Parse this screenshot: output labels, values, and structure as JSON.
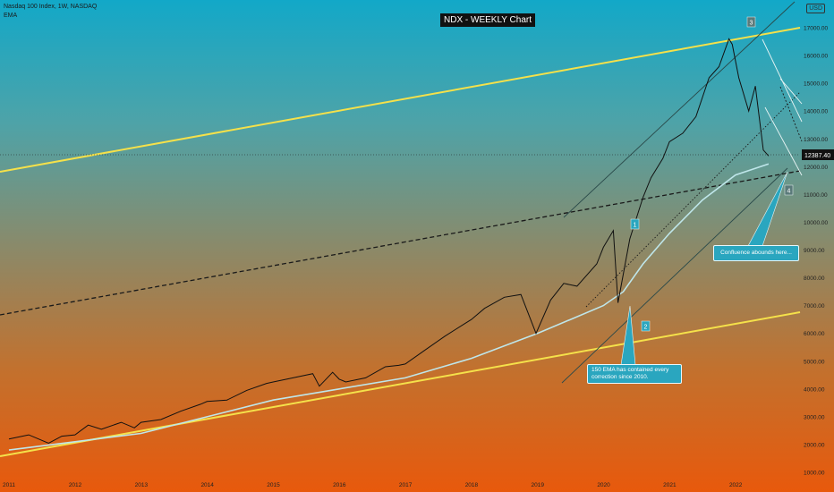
{
  "header": {
    "symbol_line": "Nasdaq 100 Index, 1W, NASDAQ",
    "indicator": "EMA",
    "currency": "USD"
  },
  "colors": {
    "price": "#111111",
    "ema": "#bfe6ea",
    "channel": "#f5e14a",
    "midline": "#1a1a1a",
    "callout": "#2aa6bf",
    "background_top": "#12a8c8",
    "background_bottom": "#e8590c"
  },
  "chart_data": {
    "type": "line",
    "title": "NDX - WEEKLY Chart",
    "x_axis": {
      "labels": [
        "2011",
        "2012",
        "2013",
        "2014",
        "2015",
        "2016",
        "2017",
        "2018",
        "2019",
        "2020",
        "2021",
        "2022"
      ],
      "range": [
        2011.0,
        2022.8
      ]
    },
    "y_axis": {
      "labels": [
        "17000.00",
        "16000.00",
        "15000.00",
        "14000.00",
        "13000.00",
        "12000.00",
        "11000.00",
        "10000.00",
        "9000.00",
        "8000.00",
        "7000.00",
        "6000.00",
        "5000.00",
        "4000.00",
        "3000.00",
        "2000.00",
        "1000.00"
      ],
      "range": [
        800,
        17500
      ],
      "position": "right"
    },
    "last_price_label": "12387.40",
    "last_price": 12387.4,
    "series": [
      {
        "type": "price",
        "x": [
          2011.0,
          2011.3,
          2011.6,
          2011.8,
          2012.0,
          2012.2,
          2012.4,
          2012.7,
          2012.9,
          2013.0,
          2013.3,
          2013.6,
          2013.9,
          2014.0,
          2014.3,
          2014.6,
          2014.9,
          2015.0,
          2015.3,
          2015.6,
          2015.7,
          2015.9,
          2016.0,
          2016.1,
          2016.4,
          2016.7,
          2016.9,
          2017.0,
          2017.3,
          2017.6,
          2017.9,
          2018.0,
          2018.2,
          2018.5,
          2018.75,
          2018.98,
          2019.2,
          2019.4,
          2019.6,
          2019.9,
          2020.0,
          2020.15,
          2020.22,
          2020.4,
          2020.6,
          2020.72,
          2020.9,
          2021.0,
          2021.2,
          2021.4,
          2021.6,
          2021.75,
          2021.9,
          2021.95,
          2022.05,
          2022.2,
          2022.3,
          2022.42,
          2022.5
        ],
        "y": [
          2200,
          2350,
          2050,
          2300,
          2350,
          2700,
          2550,
          2800,
          2600,
          2800,
          2900,
          3200,
          3450,
          3550,
          3600,
          3950,
          4200,
          4250,
          4400,
          4550,
          4100,
          4600,
          4350,
          4250,
          4400,
          4800,
          4850,
          4900,
          5400,
          5900,
          6350,
          6500,
          6900,
          7300,
          7400,
          6000,
          7200,
          7800,
          7700,
          8500,
          9100,
          9700,
          7100,
          9400,
          10900,
          11600,
          12300,
          12900,
          13200,
          13800,
          15200,
          15600,
          16600,
          16400,
          15200,
          14000,
          14900,
          12600,
          12387
        ]
      },
      {
        "type": "ema",
        "x": [
          2011.0,
          2012.0,
          2013.0,
          2014.0,
          2015.0,
          2016.0,
          2017.0,
          2018.0,
          2019.0,
          2019.5,
          2020.0,
          2020.3,
          2020.6,
          2021.0,
          2021.5,
          2022.0,
          2022.5
        ],
        "y": [
          1800,
          2100,
          2400,
          3000,
          3600,
          4000,
          4400,
          5100,
          6000,
          6500,
          7000,
          7500,
          8500,
          9600,
          10800,
          11700,
          12100
        ]
      }
    ],
    "annotations": [
      {
        "label": "1"
      },
      {
        "label": "2"
      },
      {
        "label": "3"
      },
      {
        "label": "4"
      },
      {
        "text": "Confluence abounds here..."
      },
      {
        "text": "150 EMA has contained every correction since 2010."
      }
    ]
  }
}
